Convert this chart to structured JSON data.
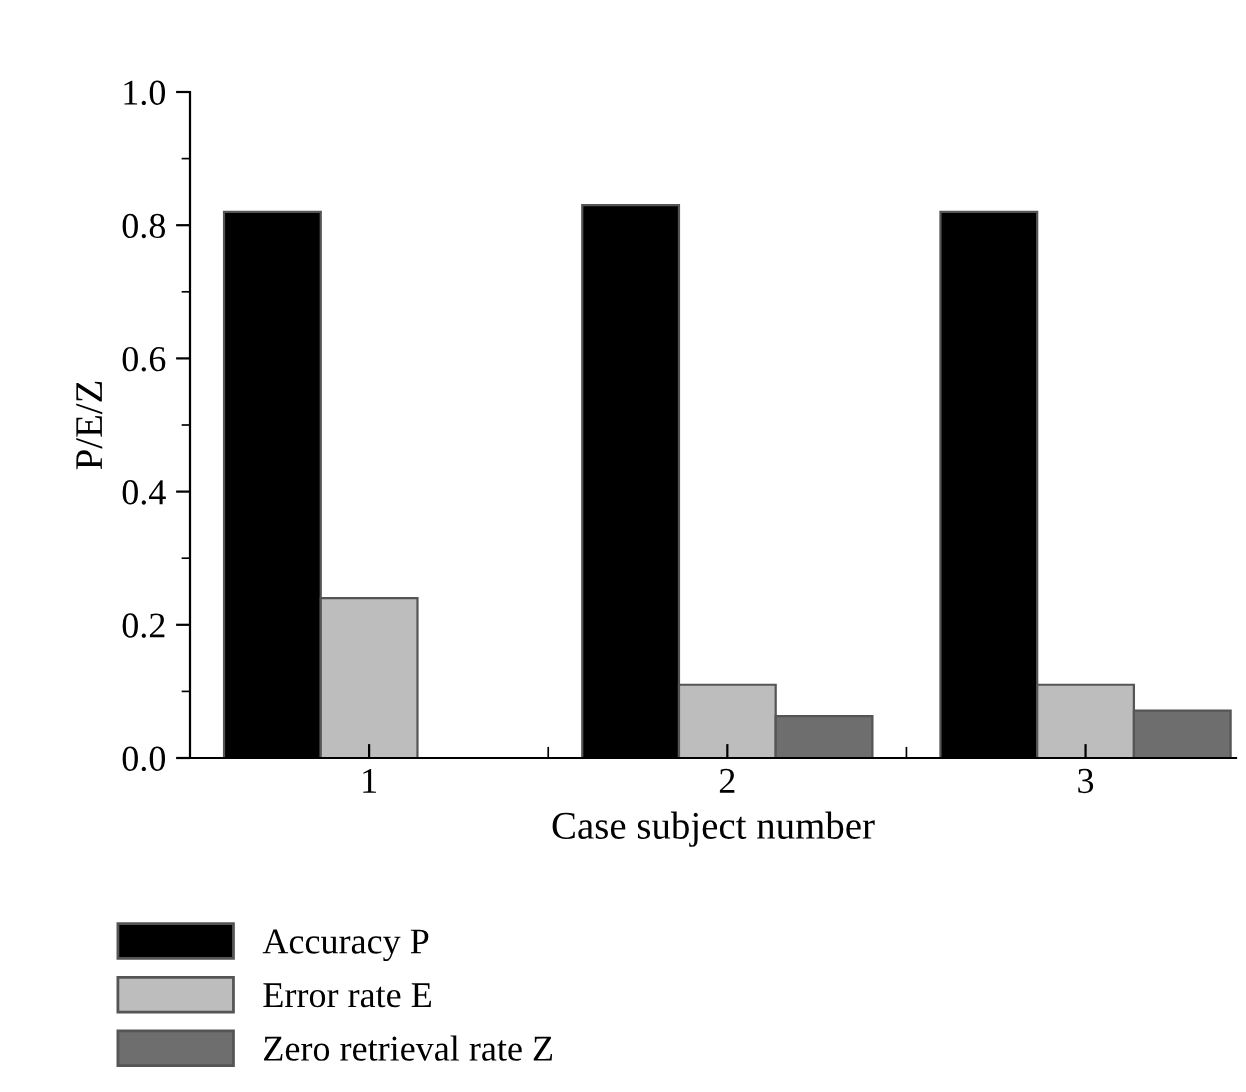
{
  "chart_data": {
    "type": "bar",
    "xlabel": "Case subject number",
    "ylabel": "P/E/Z",
    "categories": [
      "1",
      "2",
      "3"
    ],
    "series": [
      {
        "name": "Accuracy P",
        "color": "#000000",
        "values": [
          0.82,
          0.83,
          0.82
        ]
      },
      {
        "name": "Error rate E",
        "color": "#bdbdbd",
        "values": [
          0.24,
          0.11,
          0.11
        ]
      },
      {
        "name": "Zero retrieval rate Z",
        "color": "#6e6e6e",
        "values": [
          null,
          0.063,
          0.071
        ]
      }
    ],
    "ylim": [
      0,
      1.0
    ],
    "yticks": [
      {
        "value": 0,
        "label": "0.0"
      },
      {
        "value": 0.2,
        "label": "0.2"
      },
      {
        "value": 0.4,
        "label": "0.4"
      },
      {
        "value": 0.6,
        "label": "0.6"
      },
      {
        "value": 0.8,
        "label": "0.8"
      },
      {
        "value": 1.0,
        "label": "1.0"
      }
    ],
    "grid": false,
    "legend": "bottom left"
  }
}
